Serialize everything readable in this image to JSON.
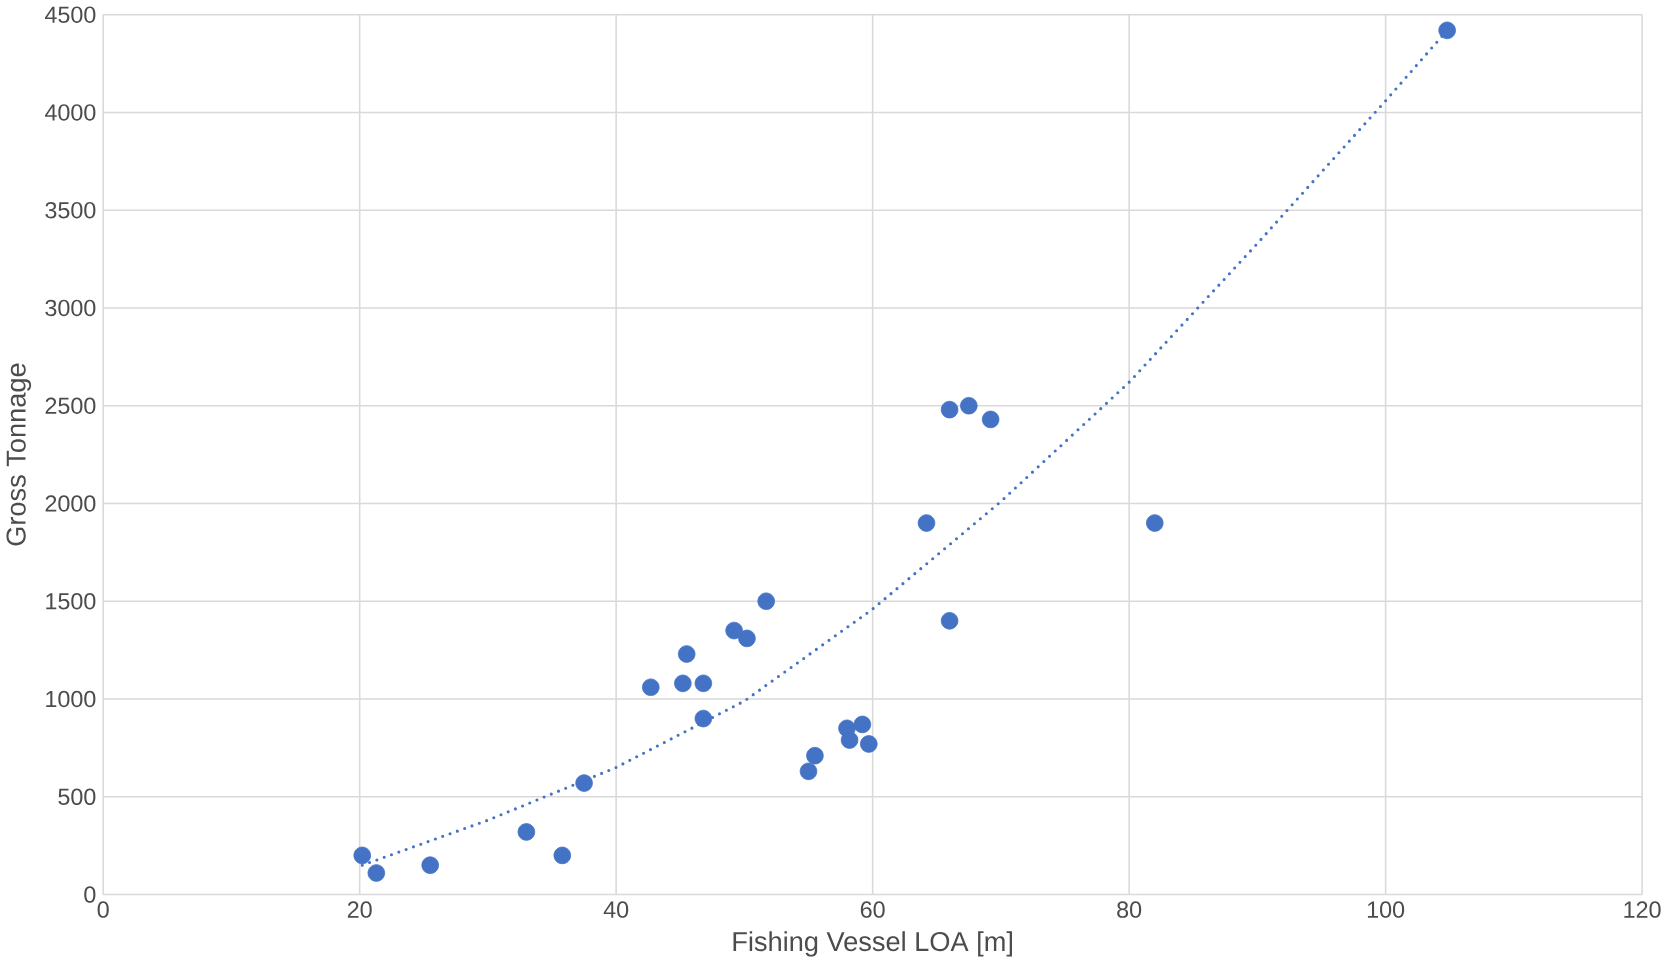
{
  "chart_data": {
    "type": "scatter",
    "xlabel": "Fishing Vessel LOA [m]",
    "ylabel": "Gross Tonnage",
    "xlim": [
      0,
      120
    ],
    "xticks": [
      0,
      20,
      40,
      60,
      80,
      100,
      120
    ],
    "ylim": [
      0,
      4500
    ],
    "yticks": [
      0,
      500,
      1000,
      1500,
      2000,
      2500,
      3000,
      3500,
      4000,
      4500
    ],
    "grid": true,
    "series": [
      {
        "color": "#4472c4",
        "marker": "circle",
        "x": [
          20.2,
          21.3,
          25.5,
          33,
          35.8,
          37.5,
          42.7,
          45.2,
          45.5,
          46.8,
          46.8,
          49.2,
          50.2,
          51.7,
          55,
          55.5,
          58,
          58.2,
          59.2,
          59.7,
          64.2,
          66,
          66,
          67.5,
          69.2,
          82,
          104.8
        ],
        "values": [
          200,
          110,
          150,
          320,
          200,
          570,
          1060,
          1080,
          1230,
          1080,
          900,
          1350,
          1310,
          1500,
          630,
          710,
          850,
          790,
          870,
          770,
          1900,
          1400,
          2480,
          2500,
          2430,
          1900,
          4420
        ]
      },
      {
        "type": "line",
        "color": "#4472c4",
        "line_style": "dotted",
        "marker": "none",
        "x": [
          20.2,
          30,
          40,
          50,
          60,
          70,
          80,
          90,
          100,
          104.8
        ],
        "values": [
          150,
          380,
          650,
          990,
          1460,
          2010,
          2620,
          3330,
          4060,
          4420
        ]
      }
    ]
  }
}
